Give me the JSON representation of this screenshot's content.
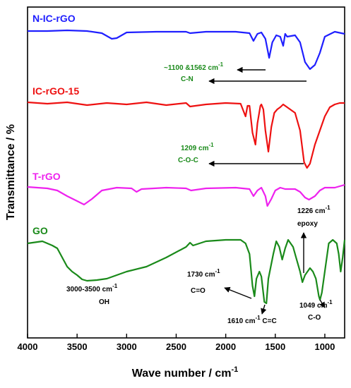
{
  "chart_data": {
    "type": "line",
    "xlabel": "Wave number / cm",
    "xlabel_sup": "-1",
    "ylabel": "Transmittance / %",
    "xlim": [
      4000,
      800
    ],
    "x_ticks": [
      4000,
      3500,
      3000,
      2500,
      2000,
      1500,
      1000
    ],
    "x_tick_labels": [
      "4000",
      "3500",
      "3000",
      "2500",
      "2000",
      "1500",
      "1000"
    ],
    "y_ticks": "none",
    "grid": false,
    "legend": "labels-above-each-trace",
    "series": [
      {
        "name": "N-IC-rGO",
        "color": "#1f1fff",
        "points": [
          [
            4000,
            44
          ],
          [
            3800,
            44
          ],
          [
            3600,
            43
          ],
          [
            3400,
            44
          ],
          [
            3250,
            47
          ],
          [
            3150,
            55
          ],
          [
            3100,
            54
          ],
          [
            3000,
            46
          ],
          [
            2700,
            45
          ],
          [
            2400,
            45
          ],
          [
            2360,
            47
          ],
          [
            2200,
            45
          ],
          [
            1900,
            45
          ],
          [
            1760,
            47
          ],
          [
            1720,
            58
          ],
          [
            1680,
            48
          ],
          [
            1640,
            46
          ],
          [
            1600,
            55
          ],
          [
            1562,
            82
          ],
          [
            1530,
            60
          ],
          [
            1490,
            50
          ],
          [
            1450,
            52
          ],
          [
            1420,
            65
          ],
          [
            1400,
            48
          ],
          [
            1380,
            52
          ],
          [
            1300,
            50
          ],
          [
            1250,
            60
          ],
          [
            1200,
            88
          ],
          [
            1150,
            98
          ],
          [
            1100,
            92
          ],
          [
            1050,
            75
          ],
          [
            1000,
            52
          ],
          [
            900,
            45
          ],
          [
            800,
            48
          ]
        ]
      },
      {
        "name": "IC-rGO-15",
        "color": "#ee1111",
        "points": [
          [
            4000,
            145
          ],
          [
            3800,
            147
          ],
          [
            3600,
            145
          ],
          [
            3400,
            149
          ],
          [
            3200,
            146
          ],
          [
            3000,
            148
          ],
          [
            2800,
            145
          ],
          [
            2600,
            149
          ],
          [
            2400,
            146
          ],
          [
            2360,
            151
          ],
          [
            2200,
            148
          ],
          [
            2000,
            146
          ],
          [
            1850,
            147
          ],
          [
            1800,
            165
          ],
          [
            1780,
            150
          ],
          [
            1760,
            150
          ],
          [
            1730,
            188
          ],
          [
            1700,
            205
          ],
          [
            1680,
            175
          ],
          [
            1650,
            150
          ],
          [
            1640,
            148
          ],
          [
            1620,
            155
          ],
          [
            1600,
            185
          ],
          [
            1570,
            215
          ],
          [
            1540,
            180
          ],
          [
            1510,
            160
          ],
          [
            1480,
            155
          ],
          [
            1450,
            152
          ],
          [
            1420,
            148
          ],
          [
            1400,
            150
          ],
          [
            1350,
            155
          ],
          [
            1300,
            160
          ],
          [
            1250,
            185
          ],
          [
            1209,
            230
          ],
          [
            1180,
            238
          ],
          [
            1150,
            232
          ],
          [
            1100,
            205
          ],
          [
            1050,
            185
          ],
          [
            1000,
            165
          ],
          [
            950,
            152
          ],
          [
            900,
            148
          ],
          [
            850,
            146
          ],
          [
            800,
            146
          ]
        ]
      },
      {
        "name": "T-rGO",
        "color": "#ee22ee",
        "points": [
          [
            4000,
            265
          ],
          [
            3800,
            267
          ],
          [
            3700,
            270
          ],
          [
            3600,
            278
          ],
          [
            3500,
            285
          ],
          [
            3430,
            290
          ],
          [
            3350,
            282
          ],
          [
            3250,
            270
          ],
          [
            3100,
            266
          ],
          [
            2950,
            267
          ],
          [
            2900,
            272
          ],
          [
            2850,
            268
          ],
          [
            2600,
            266
          ],
          [
            2400,
            267
          ],
          [
            2350,
            270
          ],
          [
            2200,
            267
          ],
          [
            1900,
            266
          ],
          [
            1760,
            268
          ],
          [
            1720,
            278
          ],
          [
            1680,
            270
          ],
          [
            1640,
            266
          ],
          [
            1600,
            278
          ],
          [
            1580,
            292
          ],
          [
            1540,
            282
          ],
          [
            1500,
            270
          ],
          [
            1450,
            266
          ],
          [
            1400,
            268
          ],
          [
            1300,
            268
          ],
          [
            1250,
            272
          ],
          [
            1200,
            280
          ],
          [
            1160,
            283
          ],
          [
            1100,
            278
          ],
          [
            1050,
            270
          ],
          [
            1000,
            266
          ],
          [
            900,
            266
          ],
          [
            800,
            262
          ]
        ]
      },
      {
        "name": "GO",
        "color": "#1a8a1a",
        "points": [
          [
            4000,
            345
          ],
          [
            3850,
            342
          ],
          [
            3750,
            348
          ],
          [
            3700,
            352
          ],
          [
            3650,
            365
          ],
          [
            3600,
            378
          ],
          [
            3550,
            385
          ],
          [
            3500,
            390
          ],
          [
            3450,
            396
          ],
          [
            3400,
            398
          ],
          [
            3300,
            397
          ],
          [
            3200,
            395
          ],
          [
            3100,
            390
          ],
          [
            3000,
            385
          ],
          [
            2800,
            378
          ],
          [
            2600,
            365
          ],
          [
            2400,
            350
          ],
          [
            2360,
            344
          ],
          [
            2330,
            348
          ],
          [
            2200,
            342
          ],
          [
            2000,
            340
          ],
          [
            1850,
            340
          ],
          [
            1800,
            345
          ],
          [
            1760,
            360
          ],
          [
            1730,
            405
          ],
          [
            1710,
            420
          ],
          [
            1690,
            395
          ],
          [
            1660,
            385
          ],
          [
            1640,
            392
          ],
          [
            1610,
            428
          ],
          [
            1590,
            430
          ],
          [
            1570,
            395
          ],
          [
            1520,
            360
          ],
          [
            1490,
            342
          ],
          [
            1460,
            350
          ],
          [
            1430,
            368
          ],
          [
            1400,
            352
          ],
          [
            1370,
            340
          ],
          [
            1320,
            350
          ],
          [
            1290,
            365
          ],
          [
            1250,
            385
          ],
          [
            1226,
            400
          ],
          [
            1200,
            390
          ],
          [
            1150,
            380
          ],
          [
            1120,
            385
          ],
          [
            1090,
            395
          ],
          [
            1060,
            420
          ],
          [
            1049,
            425
          ],
          [
            1030,
            415
          ],
          [
            1000,
            385
          ],
          [
            960,
            345
          ],
          [
            920,
            340
          ],
          [
            880,
            345
          ],
          [
            860,
            360
          ],
          [
            840,
            385
          ],
          [
            820,
            365
          ],
          [
            800,
            340
          ]
        ]
      }
    ],
    "series_labels": [
      "N-IC-rGO",
      "IC-rGO-15",
      "T-rGO",
      "GO"
    ],
    "annotations": [
      {
        "id": "nic-1",
        "lines": [
          "~1100 &1562 cm",
          "C-N"
        ],
        "sup": "-1",
        "color": "#1a8a1a"
      },
      {
        "id": "ic-1",
        "lines": [
          "1209 cm",
          "C-O-C"
        ],
        "sup": "-1",
        "color": "#1a8a1a"
      },
      {
        "id": "go-oh",
        "lines": [
          "3000-3500 cm",
          "OH"
        ],
        "sup": "-1",
        "color": "#000000"
      },
      {
        "id": "go-co",
        "lines": [
          "1730 cm",
          "C=O"
        ],
        "sup": "-1",
        "color": "#000000"
      },
      {
        "id": "go-cc",
        "lines": [
          "1610 cm",
          " C=C"
        ],
        "sup": "-1",
        "color": "#000000"
      },
      {
        "id": "go-epoxy",
        "lines": [
          "1226 cm",
          "epoxy"
        ],
        "sup": "-1",
        "color": "#000000"
      },
      {
        "id": "go-c-o",
        "lines": [
          "1049 cm",
          "C-O"
        ],
        "sup": "-1",
        "color": "#000000"
      }
    ]
  }
}
